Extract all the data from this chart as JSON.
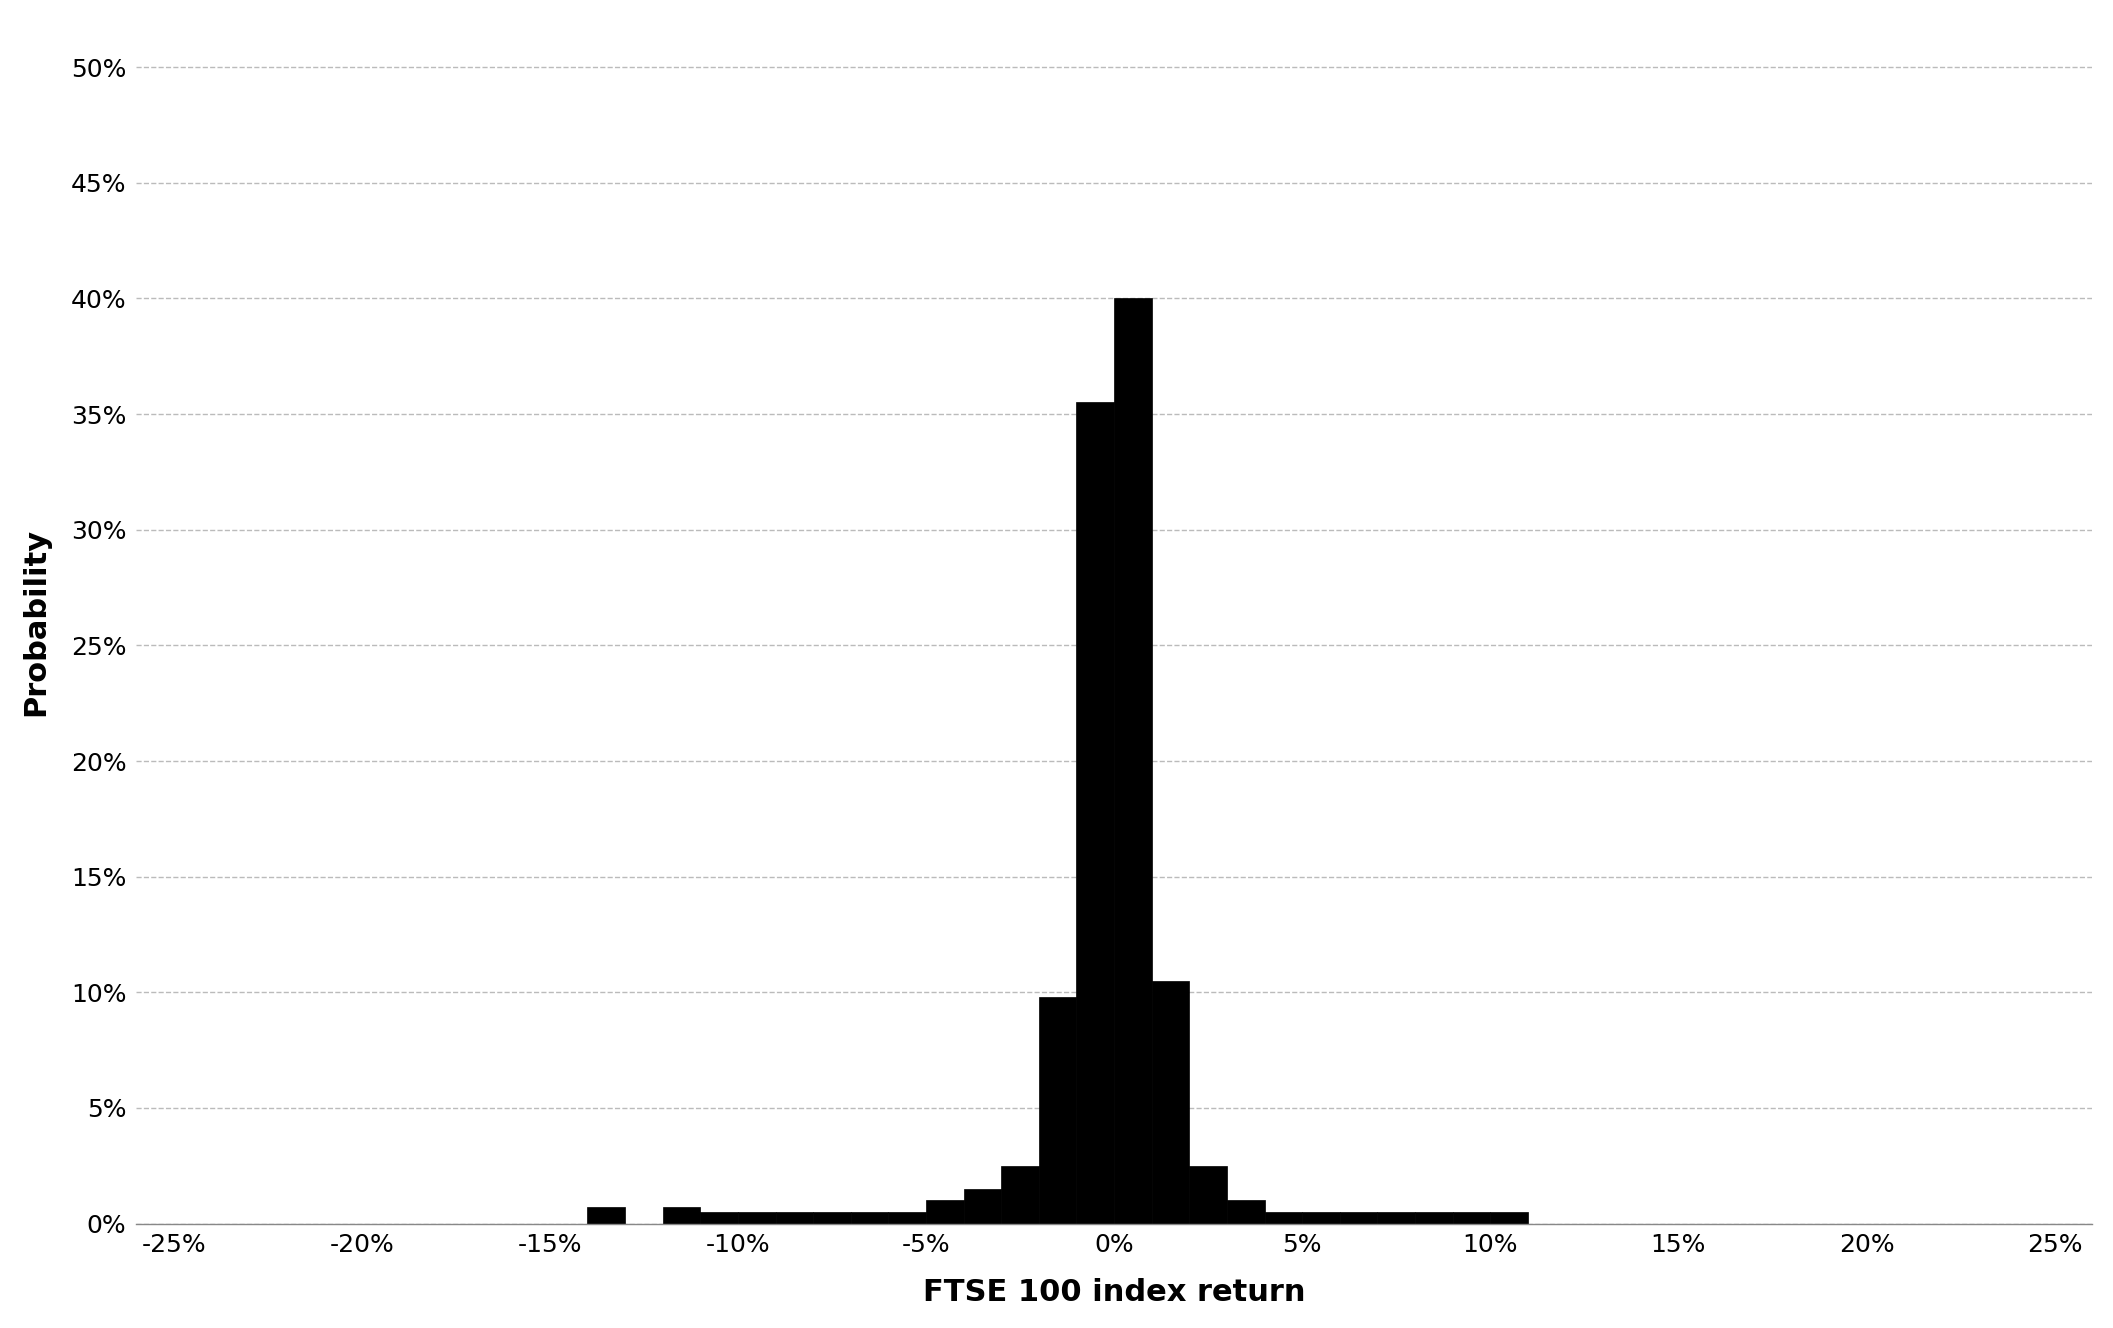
{
  "title": "",
  "xlabel": "FTSE 100 index return",
  "ylabel": "Probability",
  "bar_color": "#000000",
  "background_color": "#ffffff",
  "xlim": [
    -0.26,
    0.26
  ],
  "ylim": [
    0,
    0.52
  ],
  "xticks": [
    -0.25,
    -0.2,
    -0.15,
    -0.1,
    -0.05,
    0.0,
    0.05,
    0.1,
    0.15,
    0.2,
    0.25
  ],
  "yticks": [
    0.0,
    0.05,
    0.1,
    0.15,
    0.2,
    0.25,
    0.3,
    0.35,
    0.4,
    0.45,
    0.5
  ],
  "grid_color": "#aaaaaa",
  "bar_width": 0.01,
  "bar_centers": [
    -0.135,
    -0.125,
    -0.115,
    -0.105,
    -0.095,
    -0.085,
    -0.075,
    -0.065,
    -0.055,
    -0.045,
    -0.035,
    -0.025,
    -0.015,
    -0.005,
    0.005,
    0.015,
    0.025,
    0.035,
    0.045,
    0.055,
    0.065,
    0.075,
    0.085,
    0.095,
    0.105
  ],
  "bar_heights": [
    0.007,
    0.0,
    0.007,
    0.005,
    0.005,
    0.005,
    0.005,
    0.005,
    0.005,
    0.01,
    0.015,
    0.025,
    0.098,
    0.355,
    0.4,
    0.105,
    0.025,
    0.01,
    0.005,
    0.005,
    0.005,
    0.005,
    0.005,
    0.005,
    0.005
  ]
}
